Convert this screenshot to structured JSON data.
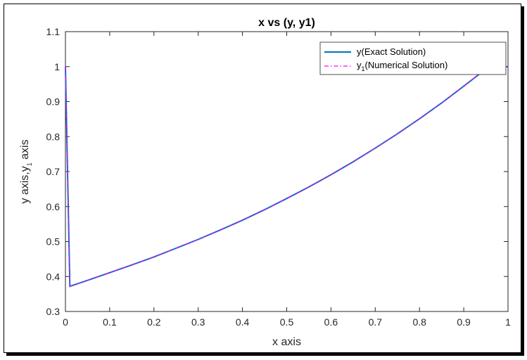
{
  "chart_data": {
    "type": "line",
    "title": "x vs (y, y1)",
    "xlabel": "x axis",
    "ylabel": "y axis,y",
    "ylabel_subscript": "1",
    "ylabel_suffix": " axis",
    "xlim": [
      0,
      1
    ],
    "ylim": [
      0.3,
      1.1
    ],
    "xticks": [
      "0",
      "0.1",
      "0.2",
      "0.3",
      "0.4",
      "0.5",
      "0.6",
      "0.7",
      "0.8",
      "0.9",
      "1"
    ],
    "yticks": [
      "0.3",
      "0.4",
      "0.5",
      "0.6",
      "0.7",
      "0.8",
      "0.9",
      "1",
      "1.1"
    ],
    "grid": false,
    "legend_position": "top-right",
    "series": [
      {
        "name": "y(Exact Solution)",
        "color": "#0072BD",
        "style": "solid",
        "x": [
          0,
          0.01,
          0.05,
          0.1,
          0.15,
          0.2,
          0.25,
          0.3,
          0.35,
          0.4,
          0.45,
          0.5,
          0.55,
          0.6,
          0.65,
          0.7,
          0.75,
          0.8,
          0.85,
          0.9,
          0.95,
          1.0
        ],
        "values": [
          1.0,
          0.372,
          0.389,
          0.411,
          0.433,
          0.456,
          0.481,
          0.506,
          0.533,
          0.561,
          0.591,
          0.623,
          0.656,
          0.691,
          0.728,
          0.767,
          0.808,
          0.851,
          0.896,
          0.944,
          0.993,
          1.0
        ]
      },
      {
        "name": "y",
        "name_subscript": "1",
        "name_suffix": "(Numerical Solution)",
        "color": "#FF00FF",
        "style": "dashdot",
        "x": [
          0,
          0.01,
          0.05,
          0.1,
          0.15,
          0.2,
          0.25,
          0.3,
          0.35,
          0.4,
          0.45,
          0.5,
          0.55,
          0.6,
          0.65,
          0.7,
          0.75,
          0.8,
          0.85,
          0.9,
          0.95,
          1.0
        ],
        "values": [
          1.0,
          0.372,
          0.389,
          0.411,
          0.433,
          0.456,
          0.481,
          0.506,
          0.533,
          0.561,
          0.591,
          0.623,
          0.656,
          0.691,
          0.728,
          0.767,
          0.808,
          0.851,
          0.896,
          0.944,
          0.993,
          1.0
        ]
      }
    ]
  }
}
